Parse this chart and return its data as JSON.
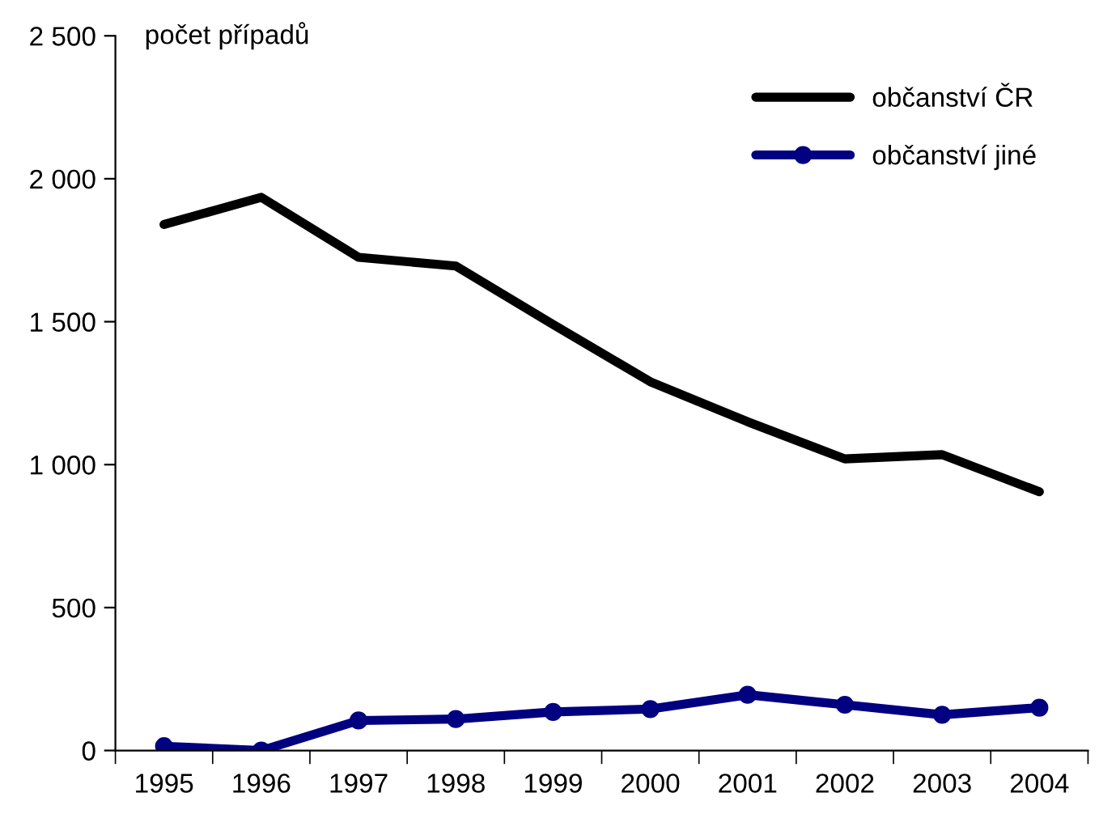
{
  "chart_data": {
    "type": "line",
    "ylabel": "počet případů",
    "categories": [
      "1995",
      "1996",
      "1997",
      "1998",
      "1999",
      "2000",
      "2001",
      "2002",
      "2003",
      "2004"
    ],
    "series": [
      {
        "name": "občanství ČR",
        "color": "#000000",
        "marker": "none",
        "values": [
          1840,
          1935,
          1725,
          1695,
          1490,
          1290,
          1150,
          1020,
          1035,
          905
        ]
      },
      {
        "name": "občanství jiné",
        "color": "#000080",
        "marker": "circle",
        "values": [
          15,
          0,
          105,
          110,
          135,
          145,
          195,
          160,
          125,
          150
        ]
      }
    ],
    "ylim": [
      0,
      2500
    ],
    "yticks": [
      {
        "value": 0,
        "label": "0"
      },
      {
        "value": 500,
        "label": "500"
      },
      {
        "value": 1000,
        "label": "1 000"
      },
      {
        "value": 1500,
        "label": "1 500"
      },
      {
        "value": 2000,
        "label": "2 000"
      },
      {
        "value": 2500,
        "label": "2 500"
      }
    ],
    "grid": false,
    "legend": "top right",
    "line_style": "solid"
  }
}
